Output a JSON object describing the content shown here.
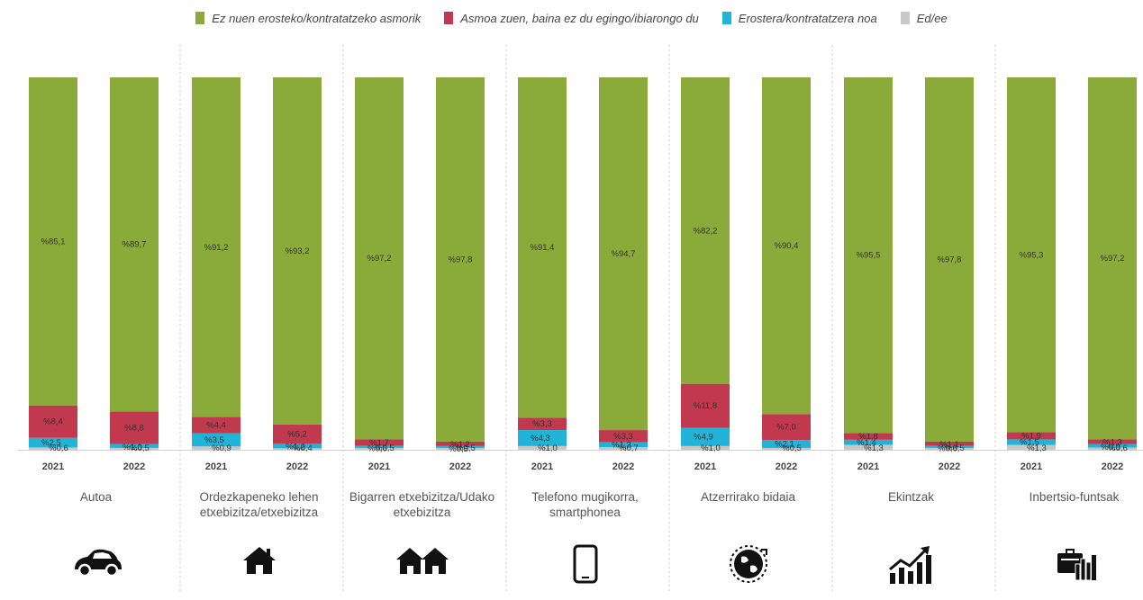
{
  "legend": [
    {
      "label": "Ez nuen erosteko/kontratatzeko asmorik",
      "color": "#8aab3a"
    },
    {
      "label": "Asmoa zuen, baina ez du egingo/ibiarongo du",
      "color": "#c0394e"
    },
    {
      "label": "Erostera/kontratatzera noa",
      "color": "#21b4d8"
    },
    {
      "label": "Ed/ee",
      "color": "#c8c8c8"
    }
  ],
  "chart_data": {
    "type": "bar",
    "stacked": true,
    "ylim": [
      0,
      100
    ],
    "x_tick_labels": [
      "2021",
      "2022"
    ],
    "categories": [
      {
        "label": "Autoa",
        "icon": "car-icon",
        "bars": [
          {
            "year": "2021",
            "values": [
              85.1,
              8.4,
              2.5,
              0.6
            ],
            "labels": [
              "%85,1",
              "%8,4",
              "%2,5",
              "%0,6"
            ]
          },
          {
            "year": "2022",
            "values": [
              89.7,
              8.8,
              1.0,
              0.5
            ],
            "labels": [
              "%89,7",
              "%8,8",
              "%1,0",
              "%0,5"
            ]
          }
        ]
      },
      {
        "label": "Ordezkapeneko lehen etxebizitza/etxebizitza",
        "icon": "house-icon",
        "bars": [
          {
            "year": "2021",
            "values": [
              91.2,
              4.4,
              3.5,
              0.9
            ],
            "labels": [
              "%91,2",
              "%4,4",
              "%3,5",
              "%0,9"
            ]
          },
          {
            "year": "2022",
            "values": [
              93.2,
              5.2,
              1.2,
              0.4
            ],
            "labels": [
              "%93,2",
              "%5,2",
              "%1,2",
              "%0,4"
            ]
          }
        ]
      },
      {
        "label": "Bigarren etxebizitza/Udako etxebizitza",
        "icon": "houses-icon",
        "bars": [
          {
            "year": "2021",
            "values": [
              97.2,
              1.7,
              0.6,
              0.5
            ],
            "labels": [
              "%97,2",
              "%1,7",
              "%0,6",
              "%0,5"
            ]
          },
          {
            "year": "2022",
            "values": [
              97.8,
              1.2,
              0.5,
              0.5
            ],
            "labels": [
              "%97,8",
              "%1,2",
              "%0,5",
              "%0,5"
            ]
          }
        ]
      },
      {
        "label": "Telefono mugikorra, smartphonea",
        "icon": "smartphone-icon",
        "bars": [
          {
            "year": "2021",
            "values": [
              91.4,
              3.3,
              4.3,
              1.0
            ],
            "labels": [
              "%91,4",
              "%3,3",
              "%4,3",
              "%1,0"
            ]
          },
          {
            "year": "2022",
            "values": [
              94.7,
              3.3,
              1.3,
              0.7
            ],
            "labels": [
              "%94,7",
              "%3,3",
              "%1,3",
              "%0,7"
            ]
          }
        ]
      },
      {
        "label": "Atzerrirako bidaia",
        "icon": "globe-icon",
        "bars": [
          {
            "year": "2021",
            "values": [
              82.2,
              11.8,
              4.9,
              1.0
            ],
            "labels": [
              "%82,2",
              "%11,8",
              "%4,9",
              "%1,0"
            ]
          },
          {
            "year": "2022",
            "values": [
              90.4,
              7.0,
              2.1,
              0.5
            ],
            "labels": [
              "%90,4",
              "%7,0",
              "%2,1",
              "%0,5"
            ]
          }
        ]
      },
      {
        "label": "Ekintzak",
        "icon": "growth-chart-icon",
        "bars": [
          {
            "year": "2021",
            "values": [
              95.5,
              1.8,
              1.4,
              1.3
            ],
            "labels": [
              "%95,5",
              "%1,8",
              "%1,4",
              "%1,3"
            ]
          },
          {
            "year": "2022",
            "values": [
              97.8,
              1.1,
              0.6,
              0.5
            ],
            "labels": [
              "%97,8",
              "%1,1",
              "%0,6",
              "%0,5"
            ]
          }
        ]
      },
      {
        "label": "Inbertsio-funtsak",
        "icon": "investment-funds-icon",
        "bars": [
          {
            "year": "2021",
            "values": [
              95.3,
              1.9,
              1.5,
              1.3
            ],
            "labels": [
              "%95,3",
              "%1,9",
              "%1,5",
              "%1,3"
            ]
          },
          {
            "year": "2022",
            "values": [
              97.2,
              1.3,
              0.9,
              0.6
            ],
            "labels": [
              "%97,2",
              "%1,3",
              "%0,9",
              "%0,6"
            ]
          }
        ]
      }
    ]
  }
}
